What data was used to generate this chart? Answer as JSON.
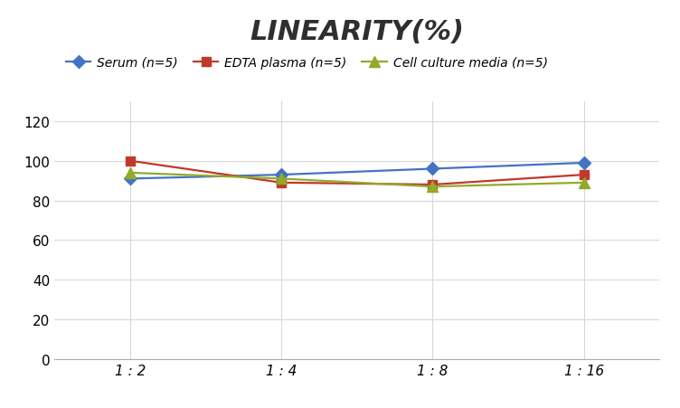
{
  "title": "LINEARITY(%)",
  "x_labels": [
    "1 : 2",
    "1 : 4",
    "1 : 8",
    "1 : 16"
  ],
  "x_positions": [
    0,
    1,
    2,
    3
  ],
  "series": [
    {
      "label": "Serum (n=5)",
      "values": [
        91,
        93,
        96,
        99
      ],
      "color": "#4472C4",
      "marker": "D",
      "markersize": 7,
      "linewidth": 1.6
    },
    {
      "label": "EDTA plasma (n=5)",
      "values": [
        100,
        89,
        88,
        93
      ],
      "color": "#C0392B",
      "marker": "s",
      "markersize": 7,
      "linewidth": 1.6
    },
    {
      "label": "Cell culture media (n=5)",
      "values": [
        94,
        91,
        87,
        89
      ],
      "color": "#92AA2A",
      "marker": "^",
      "markersize": 8,
      "linewidth": 1.6
    }
  ],
  "ylim": [
    0,
    130
  ],
  "yticks": [
    0,
    20,
    40,
    60,
    80,
    100,
    120
  ],
  "background_color": "#ffffff",
  "grid_color": "#d8d8d8",
  "title_fontsize": 22,
  "legend_fontsize": 10,
  "tick_fontsize": 11
}
